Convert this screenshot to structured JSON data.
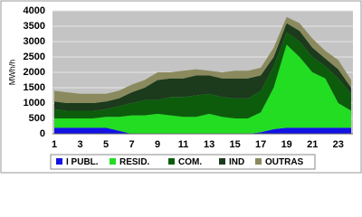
{
  "chart_data": {
    "type": "stacked_area",
    "y_label": "MWh/h",
    "x": [
      1,
      2,
      3,
      4,
      5,
      6,
      7,
      8,
      9,
      10,
      11,
      12,
      13,
      14,
      15,
      16,
      17,
      18,
      19,
      20,
      21,
      22,
      23,
      24
    ],
    "xlim": [
      1,
      24
    ],
    "xticks": [
      1,
      3,
      5,
      7,
      9,
      11,
      13,
      15,
      17,
      19,
      21,
      23
    ],
    "ylim": [
      0,
      4000
    ],
    "yticks": [
      0,
      500,
      1000,
      1500,
      2000,
      2500,
      3000,
      3500,
      4000
    ],
    "grid": true,
    "series": [
      {
        "name": "I PUBL.",
        "color": "#1212e6",
        "values": [
          200,
          200,
          200,
          200,
          200,
          100,
          0,
          0,
          0,
          0,
          0,
          0,
          0,
          0,
          0,
          0,
          50,
          150,
          200,
          200,
          200,
          200,
          200,
          200
        ]
      },
      {
        "name": "RESID.",
        "color": "#22dd22",
        "values": [
          300,
          300,
          300,
          300,
          350,
          450,
          600,
          600,
          650,
          600,
          550,
          550,
          650,
          550,
          500,
          500,
          650,
          1350,
          2700,
          2300,
          1800,
          1600,
          800,
          550
        ]
      },
      {
        "name": "COM.",
        "color": "#0c5c0c",
        "values": [
          300,
          250,
          250,
          250,
          250,
          350,
          400,
          500,
          450,
          600,
          650,
          700,
          650,
          650,
          650,
          650,
          700,
          700,
          400,
          500,
          500,
          400,
          800,
          550
        ]
      },
      {
        "name": "IND",
        "color": "#1c3a1c",
        "values": [
          250,
          250,
          250,
          250,
          250,
          250,
          350,
          400,
          650,
          600,
          600,
          650,
          600,
          600,
          650,
          650,
          500,
          300,
          300,
          350,
          300,
          250,
          300,
          200
        ]
      },
      {
        "name": "OUTRAS",
        "color": "#8a8a5e",
        "values": [
          350,
          350,
          300,
          300,
          250,
          250,
          250,
          250,
          250,
          200,
          250,
          200,
          150,
          200,
          250,
          250,
          250,
          300,
          200,
          250,
          300,
          250,
          300,
          250
        ]
      }
    ]
  }
}
